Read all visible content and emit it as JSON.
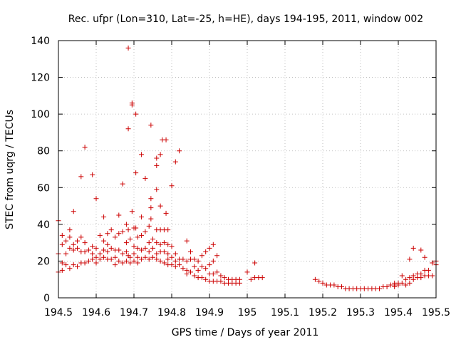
{
  "chart_data": {
    "type": "scatter",
    "title": "Rec. ufpr (Lon=310, Lat=-25, h=HE), days 194-195, 2011, window 002",
    "xlabel": "GPS time / Days of year 2011",
    "ylabel": "STEC from uqrg / TECUs",
    "xlim": [
      194.5,
      195.5
    ],
    "ylim": [
      0,
      140
    ],
    "xticks": [
      "194.5",
      "194.6",
      "194.7",
      "194.8",
      "194.9",
      "195",
      "195.1",
      "195.2",
      "195.3",
      "195.4",
      "195.5"
    ],
    "yticks": [
      "0",
      "20",
      "40",
      "60",
      "80",
      "100",
      "120",
      "140"
    ],
    "grid": true,
    "marker": "+",
    "marker_color": "#cc0000",
    "series": [
      {
        "name": "STEC",
        "points": [
          [
            194.5,
            42
          ],
          [
            194.5,
            24
          ],
          [
            194.5,
            14
          ],
          [
            194.51,
            34
          ],
          [
            194.51,
            29
          ],
          [
            194.51,
            19
          ],
          [
            194.51,
            15
          ],
          [
            194.52,
            31
          ],
          [
            194.52,
            24
          ],
          [
            194.52,
            18
          ],
          [
            194.53,
            37
          ],
          [
            194.53,
            33
          ],
          [
            194.53,
            27
          ],
          [
            194.53,
            16
          ],
          [
            194.54,
            47
          ],
          [
            194.54,
            29
          ],
          [
            194.54,
            26
          ],
          [
            194.54,
            18
          ],
          [
            194.55,
            31
          ],
          [
            194.55,
            27
          ],
          [
            194.55,
            17
          ],
          [
            194.56,
            66
          ],
          [
            194.56,
            33
          ],
          [
            194.56,
            25
          ],
          [
            194.56,
            19
          ],
          [
            194.57,
            82
          ],
          [
            194.57,
            30
          ],
          [
            194.57,
            25
          ],
          [
            194.57,
            19
          ],
          [
            194.58,
            26
          ],
          [
            194.58,
            20
          ],
          [
            194.59,
            67
          ],
          [
            194.59,
            28
          ],
          [
            194.59,
            24
          ],
          [
            194.59,
            21
          ],
          [
            194.6,
            54
          ],
          [
            194.6,
            27
          ],
          [
            194.6,
            22
          ],
          [
            194.6,
            19
          ],
          [
            194.61,
            34
          ],
          [
            194.61,
            24
          ],
          [
            194.61,
            21
          ],
          [
            194.62,
            44
          ],
          [
            194.62,
            31
          ],
          [
            194.62,
            26
          ],
          [
            194.62,
            22
          ],
          [
            194.63,
            35
          ],
          [
            194.63,
            29
          ],
          [
            194.63,
            25
          ],
          [
            194.63,
            21
          ],
          [
            194.64,
            37
          ],
          [
            194.64,
            27
          ],
          [
            194.64,
            21
          ],
          [
            194.65,
            33
          ],
          [
            194.65,
            26
          ],
          [
            194.65,
            22
          ],
          [
            194.65,
            18
          ],
          [
            194.66,
            45
          ],
          [
            194.66,
            35
          ],
          [
            194.66,
            26
          ],
          [
            194.66,
            20
          ],
          [
            194.67,
            62
          ],
          [
            194.67,
            36
          ],
          [
            194.67,
            24
          ],
          [
            194.67,
            19
          ],
          [
            194.68,
            40
          ],
          [
            194.68,
            30
          ],
          [
            194.68,
            25
          ],
          [
            194.68,
            20
          ],
          [
            194.685,
            136
          ],
          [
            194.685,
            92
          ],
          [
            194.685,
            37
          ],
          [
            194.685,
            23
          ],
          [
            194.69,
            32
          ],
          [
            194.69,
            22
          ],
          [
            194.69,
            19
          ],
          [
            194.695,
            106
          ],
          [
            194.695,
            105
          ],
          [
            194.695,
            47
          ],
          [
            194.7,
            38
          ],
          [
            194.7,
            28
          ],
          [
            194.7,
            24
          ],
          [
            194.7,
            20
          ],
          [
            194.705,
            100
          ],
          [
            194.705,
            68
          ],
          [
            194.705,
            38
          ],
          [
            194.71,
            33
          ],
          [
            194.71,
            27
          ],
          [
            194.71,
            22
          ],
          [
            194.71,
            19
          ],
          [
            194.72,
            78
          ],
          [
            194.72,
            44
          ],
          [
            194.72,
            34
          ],
          [
            194.72,
            26
          ],
          [
            194.72,
            21
          ],
          [
            194.73,
            65
          ],
          [
            194.73,
            36
          ],
          [
            194.73,
            27
          ],
          [
            194.73,
            22
          ],
          [
            194.74,
            39
          ],
          [
            194.74,
            30
          ],
          [
            194.74,
            25
          ],
          [
            194.74,
            21
          ],
          [
            194.745,
            94
          ],
          [
            194.745,
            54
          ],
          [
            194.745,
            49
          ],
          [
            194.745,
            43
          ],
          [
            194.75,
            32
          ],
          [
            194.75,
            27
          ],
          [
            194.75,
            22
          ],
          [
            194.76,
            76
          ],
          [
            194.76,
            72
          ],
          [
            194.76,
            59
          ],
          [
            194.76,
            37
          ],
          [
            194.76,
            30
          ],
          [
            194.76,
            24
          ],
          [
            194.76,
            21
          ],
          [
            194.77,
            78
          ],
          [
            194.77,
            50
          ],
          [
            194.77,
            37
          ],
          [
            194.77,
            29
          ],
          [
            194.77,
            25
          ],
          [
            194.77,
            20
          ],
          [
            194.775,
            86
          ],
          [
            194.78,
            37
          ],
          [
            194.78,
            30
          ],
          [
            194.78,
            25
          ],
          [
            194.78,
            19
          ],
          [
            194.785,
            86
          ],
          [
            194.785,
            46
          ],
          [
            194.79,
            37
          ],
          [
            194.79,
            29
          ],
          [
            194.79,
            24
          ],
          [
            194.79,
            21
          ],
          [
            194.79,
            18
          ],
          [
            194.8,
            61
          ],
          [
            194.8,
            28
          ],
          [
            194.8,
            22
          ],
          [
            194.8,
            18
          ],
          [
            194.81,
            74
          ],
          [
            194.81,
            24
          ],
          [
            194.81,
            20
          ],
          [
            194.81,
            17
          ],
          [
            194.82,
            80
          ],
          [
            194.82,
            21
          ],
          [
            194.82,
            18
          ],
          [
            194.83,
            21
          ],
          [
            194.83,
            16
          ],
          [
            194.84,
            31
          ],
          [
            194.84,
            20
          ],
          [
            194.84,
            15
          ],
          [
            194.84,
            13
          ],
          [
            194.85,
            25
          ],
          [
            194.85,
            21
          ],
          [
            194.85,
            14
          ],
          [
            194.86,
            21
          ],
          [
            194.86,
            17
          ],
          [
            194.86,
            12
          ],
          [
            194.87,
            20
          ],
          [
            194.87,
            15
          ],
          [
            194.87,
            11
          ],
          [
            194.88,
            23
          ],
          [
            194.88,
            17
          ],
          [
            194.88,
            11
          ],
          [
            194.89,
            25
          ],
          [
            194.89,
            16
          ],
          [
            194.89,
            10
          ],
          [
            194.9,
            27
          ],
          [
            194.9,
            18
          ],
          [
            194.9,
            13
          ],
          [
            194.9,
            9
          ],
          [
            194.91,
            29
          ],
          [
            194.91,
            20
          ],
          [
            194.91,
            13
          ],
          [
            194.91,
            9
          ],
          [
            194.92,
            23
          ],
          [
            194.92,
            14
          ],
          [
            194.92,
            9
          ],
          [
            194.93,
            12
          ],
          [
            194.93,
            9
          ],
          [
            194.94,
            11
          ],
          [
            194.94,
            8
          ],
          [
            194.95,
            10
          ],
          [
            194.95,
            8
          ],
          [
            194.96,
            10
          ],
          [
            194.96,
            8
          ],
          [
            194.97,
            10
          ],
          [
            194.97,
            8
          ],
          [
            194.98,
            10
          ],
          [
            194.98,
            8
          ],
          [
            195.0,
            14
          ],
          [
            195.01,
            10
          ],
          [
            195.02,
            19
          ],
          [
            195.02,
            11
          ],
          [
            195.03,
            11
          ],
          [
            195.04,
            11
          ],
          [
            195.18,
            10
          ],
          [
            195.19,
            9
          ],
          [
            195.2,
            8
          ],
          [
            195.21,
            7
          ],
          [
            195.22,
            7
          ],
          [
            195.23,
            7
          ],
          [
            195.24,
            6
          ],
          [
            195.25,
            6
          ],
          [
            195.26,
            5
          ],
          [
            195.27,
            5
          ],
          [
            195.28,
            5
          ],
          [
            195.29,
            5
          ],
          [
            195.3,
            5
          ],
          [
            195.31,
            5
          ],
          [
            195.32,
            5
          ],
          [
            195.33,
            5
          ],
          [
            195.34,
            5
          ],
          [
            195.35,
            5
          ],
          [
            195.36,
            6
          ],
          [
            195.37,
            6
          ],
          [
            195.38,
            7
          ],
          [
            195.39,
            8
          ],
          [
            195.39,
            7
          ],
          [
            195.39,
            6
          ],
          [
            195.4,
            8
          ],
          [
            195.4,
            7
          ],
          [
            195.41,
            12
          ],
          [
            195.41,
            8
          ],
          [
            195.42,
            10
          ],
          [
            195.42,
            7
          ],
          [
            195.43,
            21
          ],
          [
            195.43,
            11
          ],
          [
            195.43,
            8
          ],
          [
            195.44,
            27
          ],
          [
            195.44,
            12
          ],
          [
            195.44,
            10
          ],
          [
            195.45,
            13
          ],
          [
            195.45,
            11
          ],
          [
            195.46,
            26
          ],
          [
            195.46,
            13
          ],
          [
            195.46,
            11
          ],
          [
            195.47,
            22
          ],
          [
            195.47,
            15
          ],
          [
            195.47,
            12
          ],
          [
            195.48,
            15
          ],
          [
            195.48,
            12
          ],
          [
            195.49,
            19
          ],
          [
            195.49,
            12
          ],
          [
            195.5,
            20
          ],
          [
            195.5,
            18
          ]
        ]
      }
    ]
  }
}
